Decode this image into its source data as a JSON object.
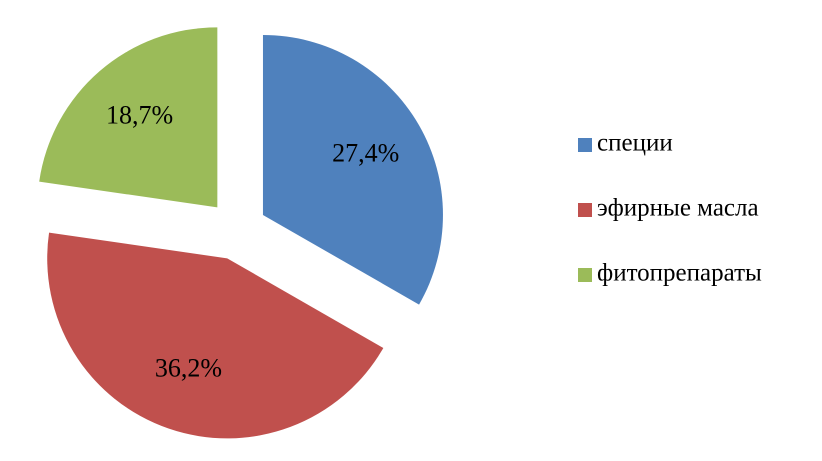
{
  "chart_data": {
    "type": "pie",
    "categories": [
      "специи",
      "эфирные масла",
      "фитопрепараты"
    ],
    "values": [
      27.4,
      36.2,
      18.7
    ],
    "value_labels": [
      "27,4%",
      "36,2%",
      "18,7%"
    ],
    "colors": [
      "#4f81bd",
      "#c0504d",
      "#9bbb59"
    ],
    "legend": "right"
  }
}
